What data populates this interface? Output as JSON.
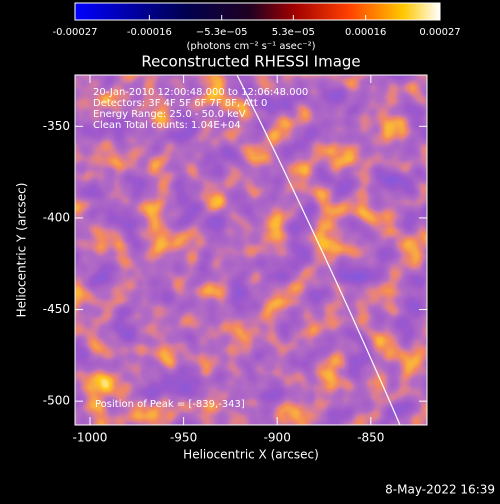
{
  "chart_data": {
    "type": "image",
    "title": "Reconstructed RHESSI Image",
    "x_label": "Heliocentric X (arcsec)",
    "y_label": "Heliocentric Y (arcsec)",
    "xlim": [
      -1008,
      -820
    ],
    "xticks": [
      -1000,
      -950,
      -900,
      -850
    ],
    "ylim": [
      -513,
      -322
    ],
    "yticks": [
      -350,
      -400,
      -450,
      -500
    ],
    "colorbar": {
      "lim": [
        -0.00027,
        0.00027
      ],
      "ticks": [
        -0.00027,
        -0.00016,
        {
          "value": -5.3e-05,
          "label": "−5.3e−05"
        },
        {
          "value": 5.3e-05,
          "label": "5.3e−05"
        },
        0.00016,
        0.00027
      ],
      "label": "(photons cm⁻² s⁻¹ asec⁻²)"
    },
    "annotations": [
      "20-Jan-2010 12:00:48.000 to 12:06:48.000",
      "Detectors: 3F 4F 5F 6F 7F 8F, Att 0",
      "Energy Range: 25.0 - 50.0 keV",
      "Clean     Total counts: 1.04E+04"
    ],
    "peak": "Position of Peak = [-839,-343]",
    "footer": "8-May-2022 16:39"
  }
}
